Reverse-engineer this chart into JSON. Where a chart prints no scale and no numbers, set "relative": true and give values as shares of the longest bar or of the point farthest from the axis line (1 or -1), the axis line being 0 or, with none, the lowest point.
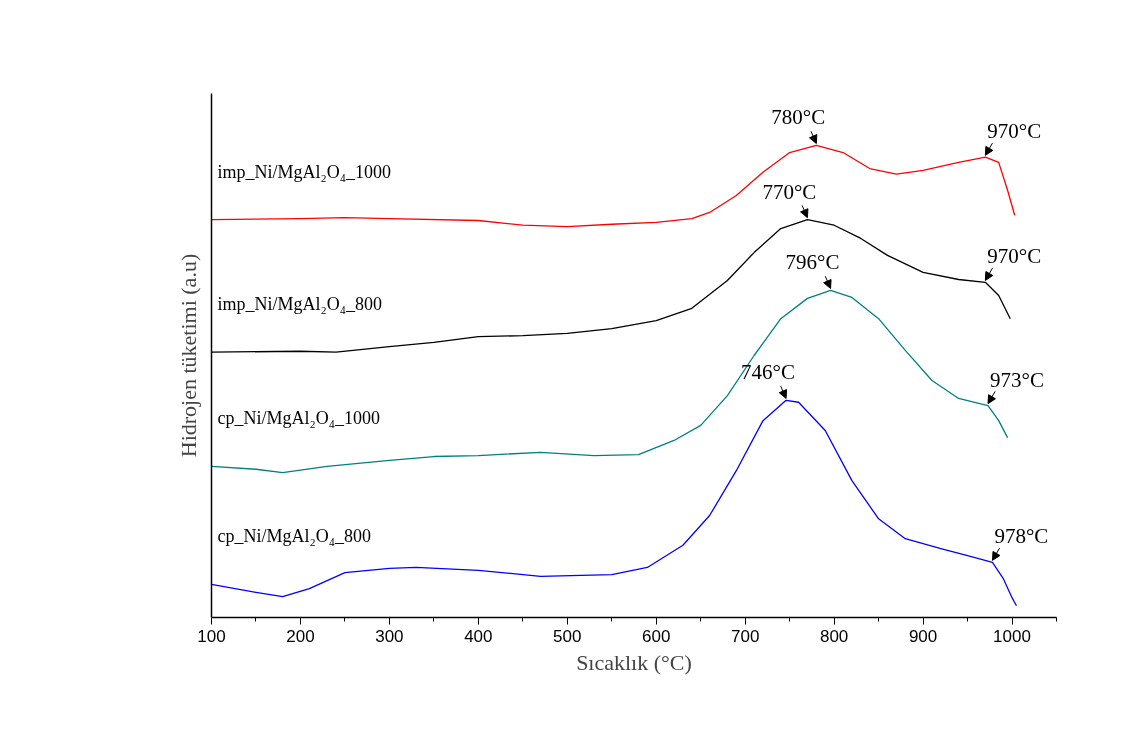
{
  "chart_data": {
    "type": "line",
    "relative": true,
    "xlabel": "Sıcaklık (°C)",
    "ylabel": "Hidrojen tüketimi (a.u)",
    "xlim": [
      100,
      1050
    ],
    "xticks": [
      100,
      200,
      300,
      400,
      500,
      600,
      700,
      800,
      900,
      1000
    ],
    "grid": false,
    "legend": false,
    "tick_labels": "x",
    "series": [
      {
        "name": "imp_Ni/MgAl₂O₄_1000",
        "color": "#ff0000",
        "x": [
          100,
          200,
          250,
          300,
          400,
          450,
          500,
          550,
          600,
          640,
          660,
          690,
          720,
          750,
          780,
          810,
          840,
          870,
          900,
          940,
          970,
          985,
          995,
          1003
        ],
        "values": [
          0.843,
          0.845,
          0.847,
          0.845,
          0.841,
          0.831,
          0.828,
          0.833,
          0.837,
          0.845,
          0.858,
          0.894,
          0.943,
          0.985,
          1.0,
          0.985,
          0.951,
          0.939,
          0.947,
          0.964,
          0.975,
          0.964,
          0.905,
          0.852
        ]
      },
      {
        "name": "imp_Ni/MgAl₂O₄_800",
        "color": "#000000",
        "x": [
          100,
          200,
          240,
          300,
          350,
          400,
          450,
          500,
          550,
          600,
          640,
          680,
          710,
          740,
          770,
          800,
          830,
          860,
          900,
          940,
          970,
          985,
          998
        ],
        "values": [
          0.562,
          0.564,
          0.562,
          0.574,
          0.583,
          0.595,
          0.597,
          0.602,
          0.612,
          0.629,
          0.655,
          0.714,
          0.773,
          0.824,
          0.843,
          0.831,
          0.803,
          0.767,
          0.731,
          0.716,
          0.71,
          0.682,
          0.633
        ]
      },
      {
        "name": "cp_Ni/MgAl₂O₄_1000",
        "color": "#008080",
        "x": [
          100,
          150,
          180,
          230,
          300,
          350,
          400,
          470,
          530,
          580,
          620,
          650,
          680,
          710,
          740,
          770,
          796,
          820,
          850,
          880,
          910,
          940,
          973,
          985,
          995
        ],
        "values": [
          0.32,
          0.314,
          0.307,
          0.32,
          0.333,
          0.341,
          0.343,
          0.35,
          0.343,
          0.345,
          0.375,
          0.407,
          0.47,
          0.555,
          0.633,
          0.676,
          0.693,
          0.678,
          0.633,
          0.566,
          0.502,
          0.464,
          0.449,
          0.417,
          0.381
        ]
      },
      {
        "name": "cp_Ni/MgAl₂O₄_800",
        "color": "#0000ff",
        "x": [
          100,
          150,
          180,
          210,
          250,
          300,
          330,
          400,
          470,
          550,
          590,
          630,
          660,
          690,
          720,
          746,
          760,
          790,
          820,
          850,
          880,
          920,
          950,
          978,
          990,
          1000,
          1005
        ],
        "values": [
          0.07,
          0.053,
          0.044,
          0.061,
          0.095,
          0.104,
          0.106,
          0.1,
          0.087,
          0.091,
          0.106,
          0.153,
          0.216,
          0.311,
          0.417,
          0.46,
          0.456,
          0.396,
          0.29,
          0.209,
          0.167,
          0.146,
          0.131,
          0.117,
          0.083,
          0.042,
          0.025
        ]
      }
    ],
    "annotations": [
      {
        "text": "780°C",
        "x": 780,
        "y": 1.0
      },
      {
        "text": "970°C",
        "x": 970,
        "y": 0.975
      },
      {
        "text": "770°C",
        "x": 770,
        "y": 0.843
      },
      {
        "text": "970°C",
        "x": 970,
        "y": 0.71
      },
      {
        "text": "796°C",
        "x": 796,
        "y": 0.693
      },
      {
        "text": "973°C",
        "x": 973,
        "y": 0.449
      },
      {
        "text": "746°C",
        "x": 746,
        "y": 0.46
      },
      {
        "text": "978°C",
        "x": 978,
        "y": 0.117
      }
    ]
  }
}
